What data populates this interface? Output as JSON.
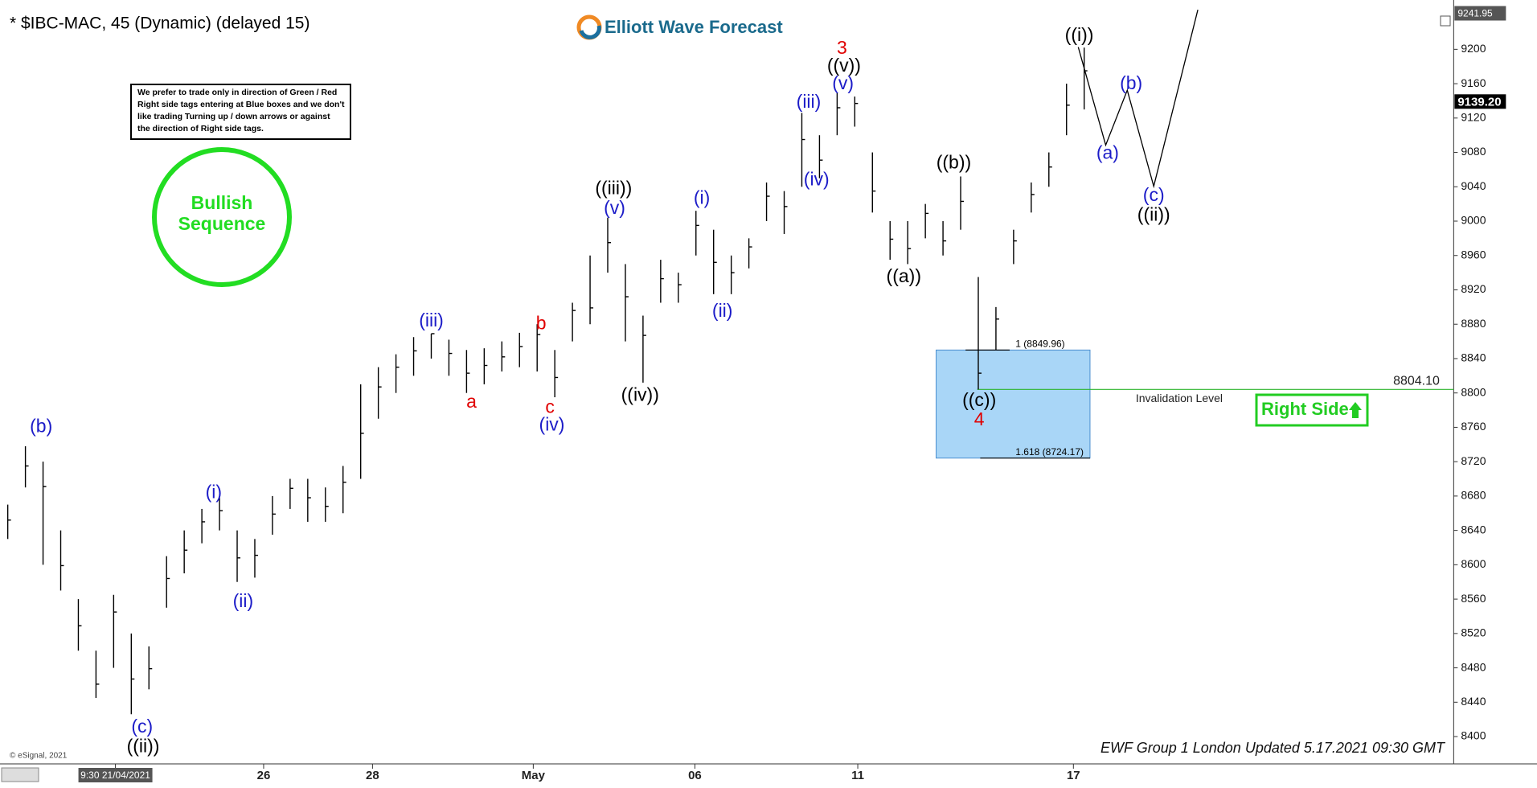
{
  "chart_data": {
    "type": "ohlc",
    "title": "* $IBC-MAC, 45 (Dynamic) (delayed 15)",
    "brand": "Elliott Wave Forecast",
    "notice": [
      "We prefer to trade only in direction of Green / Red",
      "Right side tags entering at Blue boxes and we don't",
      "like trading Turning up / down arrows or against",
      "the direction of Right side tags."
    ],
    "badge": [
      "Bullish",
      "Sequence"
    ],
    "right_side": "Right Side",
    "footer": "EWF Group 1 London Updated 5.17.2021 09:30 GMT",
    "copyright": "© eSignal, 2021",
    "color": "#000000",
    "high": [
      8670,
      8738,
      8720,
      8640,
      8560,
      8500,
      8565,
      8520,
      8505,
      8610,
      8640,
      8665,
      8678,
      8640,
      8630,
      8680,
      8700,
      8700,
      8690,
      8715,
      8810,
      8830,
      8845,
      8865,
      8869,
      8862,
      8850,
      8852,
      8860,
      8870,
      8880,
      8850,
      8905,
      8960,
      9004,
      8950,
      8890,
      8955,
      8940,
      9012,
      8990,
      8960,
      8980,
      9045,
      9035,
      9126,
      9100,
      9149,
      9145,
      9080,
      9000,
      9000,
      9020,
      9000,
      9052,
      8935,
      8900,
      8990,
      9045,
      9080,
      9160,
      9202
    ],
    "low": [
      8630,
      8690,
      8600,
      8570,
      8500,
      8445,
      8480,
      8426,
      8455,
      8550,
      8590,
      8625,
      8640,
      8580,
      8585,
      8635,
      8665,
      8650,
      8650,
      8660,
      8700,
      8770,
      8800,
      8820,
      8840,
      8820,
      8800,
      8810,
      8825,
      8830,
      8825,
      8795,
      8860,
      8880,
      8940,
      8860,
      8812,
      8905,
      8905,
      8960,
      8915,
      8915,
      8945,
      9000,
      8985,
      9040,
      9050,
      9100,
      9110,
      9010,
      8955,
      8950,
      8980,
      8960,
      8990,
      8804,
      8850,
      8950,
      9010,
      9040,
      9100,
      9130
    ],
    "close": [
      8652,
      8715,
      8691,
      8599,
      8529,
      8461,
      8545,
      8467,
      8479,
      8584,
      8617,
      8650,
      8663,
      8608,
      8611,
      8659,
      8689,
      8678,
      8668,
      8696,
      8753,
      8807,
      8830,
      8849,
      8869,
      8846,
      8823,
      8832,
      8842,
      8854,
      8868,
      8818,
      8896,
      8899,
      8975,
      8912,
      8867,
      8933,
      8926,
      8995,
      8952,
      8940,
      8970,
      9029,
      9017,
      9095,
      9071,
      9132,
      9137,
      9035,
      8979,
      8968,
      9009,
      8977,
      9023,
      8823,
      8886,
      8977,
      9031,
      9063,
      9135,
      9175
    ],
    "xlim": [
      -0.44,
      81.94
    ],
    "xticks": [
      {
        "value": 6.1,
        "label": "9:30 21/04/2021"
      },
      {
        "value": 14.5,
        "label": "26"
      },
      {
        "value": 20.67,
        "label": "28"
      },
      {
        "value": 29.78,
        "label": "May"
      },
      {
        "value": 38.94,
        "label": "06"
      },
      {
        "value": 48.17,
        "label": "11"
      },
      {
        "value": 60.39,
        "label": "17"
      }
    ],
    "ylim": [
      8382,
      9246
    ],
    "yticks": [
      8400,
      8440,
      8480,
      8520,
      8560,
      8600,
      8640,
      8680,
      8720,
      8760,
      8800,
      8840,
      8880,
      8920,
      8960,
      9000,
      9040,
      9080,
      9120,
      9160,
      9200
    ],
    "price_tags": [
      {
        "value": 9241.95,
        "label": "9241.95"
      },
      {
        "value": 9139.2,
        "label": "9139.20"
      }
    ],
    "fib_levels": [
      {
        "value": 8849.96,
        "label": "1 (8849.96)"
      },
      {
        "value": 8724.17,
        "label": "1.618 (8724.17)"
      }
    ],
    "invalidation": {
      "value": 8804.1,
      "label": "8804.10",
      "text": "Invalidation Level"
    },
    "wave_labels": [
      {
        "text": "(b)",
        "color": "#1c1cc8"
      },
      {
        "text": "(c)",
        "color": "#1c1cc8"
      },
      {
        "text": "((ii))",
        "color": "#000000"
      },
      {
        "text": "(i)",
        "color": "#1c1cc8"
      },
      {
        "text": "(ii)",
        "color": "#1c1cc8"
      },
      {
        "text": "(iii)",
        "color": "#1c1cc8"
      },
      {
        "text": "a",
        "color": "#e00000"
      },
      {
        "text": "b",
        "color": "#e00000"
      },
      {
        "text": "c",
        "color": "#e00000"
      },
      {
        "text": "(iv)",
        "color": "#1c1cc8"
      },
      {
        "text": "((iii))",
        "color": "#000000"
      },
      {
        "text": "(v)",
        "color": "#1c1cc8"
      },
      {
        "text": "((iv))",
        "color": "#000000"
      },
      {
        "text": "(i)",
        "color": "#1c1cc8"
      },
      {
        "text": "(ii)",
        "color": "#1c1cc8"
      },
      {
        "text": "(iii)",
        "color": "#1c1cc8"
      },
      {
        "text": "(iv)",
        "color": "#1c1cc8"
      },
      {
        "text": "3",
        "color": "#e00000"
      },
      {
        "text": "((v))",
        "color": "#000000"
      },
      {
        "text": "(v)",
        "color": "#1c1cc8"
      },
      {
        "text": "((a))",
        "color": "#000000"
      },
      {
        "text": "((b))",
        "color": "#000000"
      },
      {
        "text": "((c))",
        "color": "#000000"
      },
      {
        "text": "4",
        "color": "#e00000"
      },
      {
        "text": "((i))",
        "color": "#000000"
      },
      {
        "text": "(a)",
        "color": "#1c1cc8"
      },
      {
        "text": "(b)",
        "color": "#1c1cc8"
      },
      {
        "text": "(c)",
        "color": "#1c1cc8"
      },
      {
        "text": "((ii))",
        "color": "#000000"
      }
    ]
  }
}
